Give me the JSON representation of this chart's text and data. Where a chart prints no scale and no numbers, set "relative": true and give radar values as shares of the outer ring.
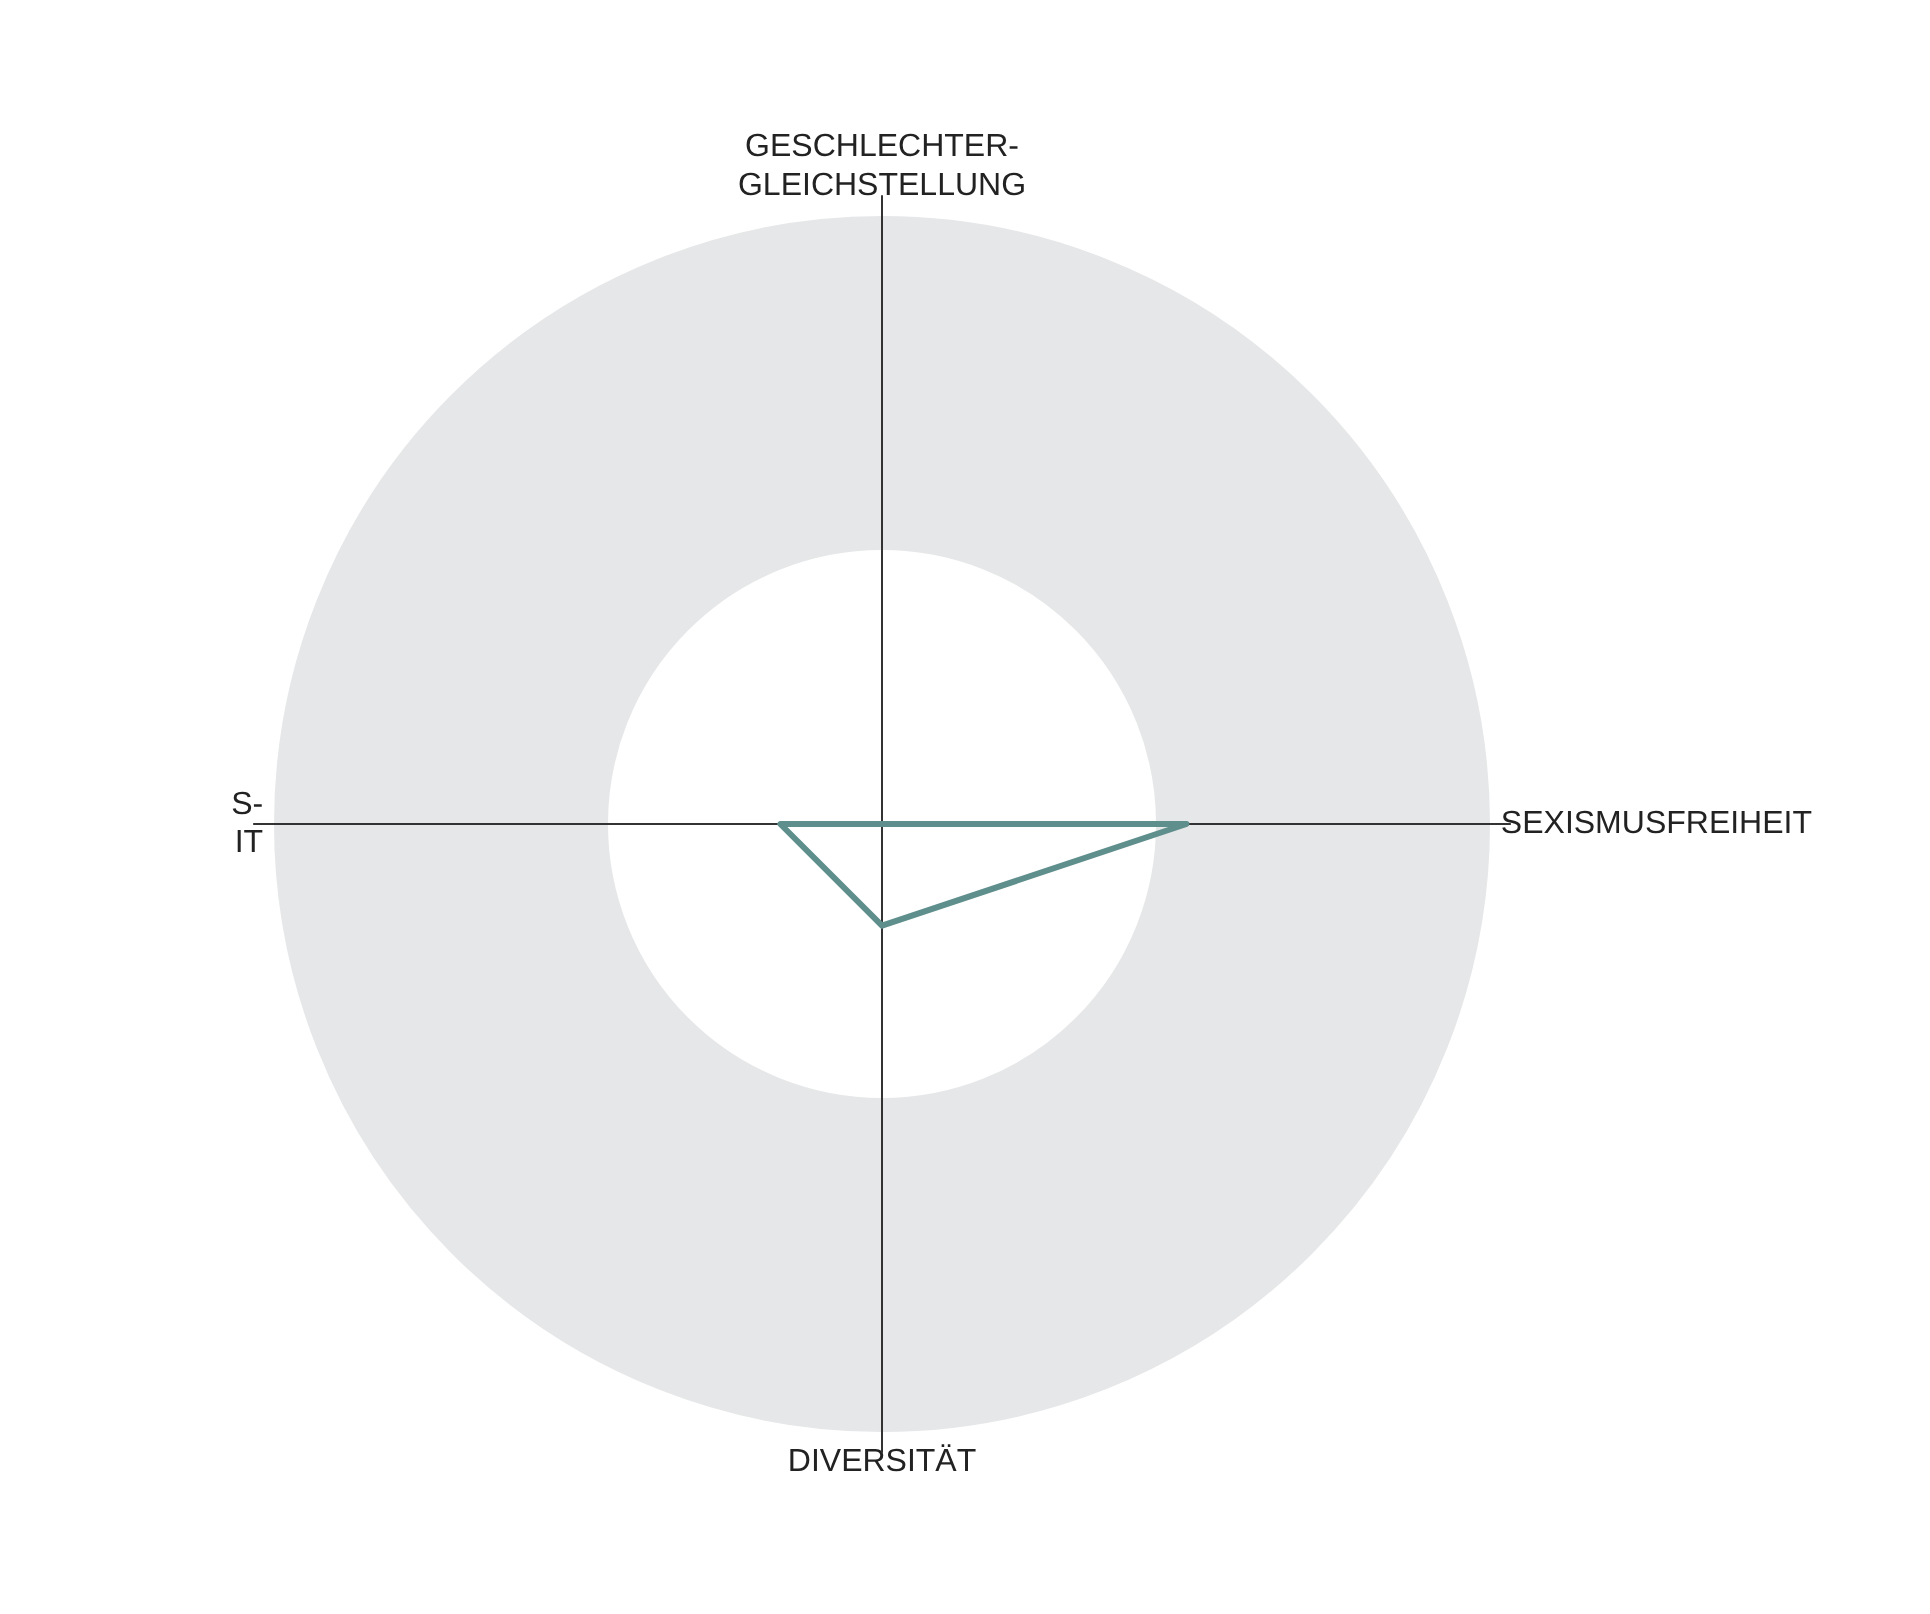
{
  "chart_data": {
    "type": "radar",
    "relative": true,
    "categories": [
      "GESCHLECHTER-\nGLEICHSTELLUNG",
      "SEXISMUSFREIHEIT",
      "DIVERSITÄT",
      "S-\nIT"
    ],
    "series": [
      {
        "color": "#5f8f8c",
        "values": [
          0,
          0.5,
          0.167,
          0.167
        ]
      }
    ],
    "legend": false,
    "grid": false,
    "marker": "none"
  }
}
